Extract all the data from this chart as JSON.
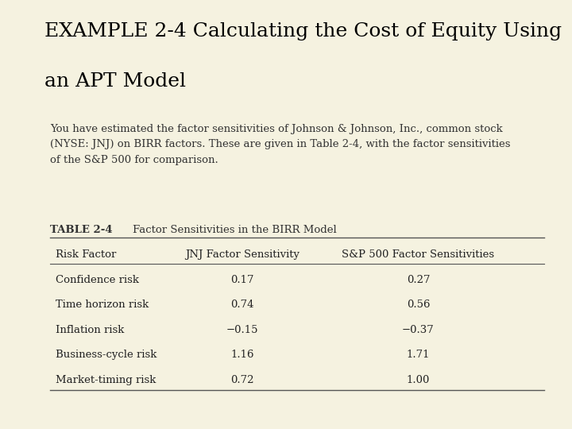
{
  "title_line1": "EXAMPLE 2-4 Calculating the Cost of Equity Using",
  "title_line2": "an APT Model",
  "bg_color": "#f5f2e0",
  "left_bar_color": "#d6d3b0",
  "right_bar_color": "#9c97a8",
  "dark_left_bar_color": "#3a2518",
  "separator_color": "#555555",
  "body_text": "You have estimated the factor sensitivities of Johnson & Johnson, Inc., common stock\n(NYSE: JNJ) on BIRR factors. These are given in Table 2-4, with the factor sensitivities\nof the S&P 500 for comparison.",
  "table_label": "TABLE 2-4",
  "table_title": "Factor Sensitivities in the BIRR Model",
  "col_headers": [
    "Risk Factor",
    "JNJ Factor Sensitivity",
    "S&P 500 Factor Sensitivities"
  ],
  "rows": [
    [
      "Confidence risk",
      "0.17",
      "0.27"
    ],
    [
      "Time horizon risk",
      "0.74",
      "0.56"
    ],
    [
      "Inflation risk",
      "−0.15",
      "−0.37"
    ],
    [
      "Business-cycle risk",
      "1.16",
      "1.71"
    ],
    [
      "Market-timing risk",
      "0.72",
      "1.00"
    ]
  ],
  "title_fontsize": 18,
  "body_fontsize": 9.5,
  "table_label_fontsize": 9.5,
  "col_header_fontsize": 9.5,
  "row_fontsize": 9.5
}
